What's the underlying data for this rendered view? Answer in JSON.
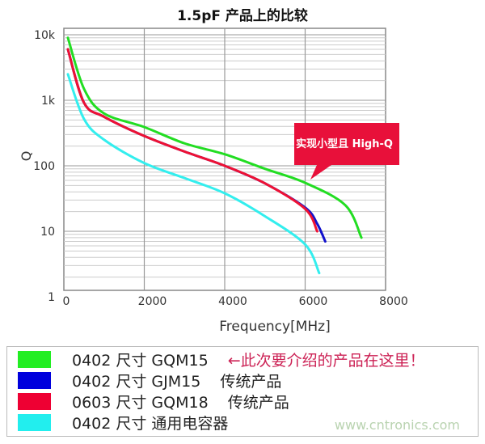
{
  "chart_data": {
    "type": "line",
    "title": "1.5pF 产品上的比较",
    "xlabel": "Frequency[MHz]",
    "ylabel": "Q",
    "xlim": [
      0,
      8000
    ],
    "ylim": [
      1,
      10000
    ],
    "yscale": "log",
    "xticks": [
      "0",
      "2000",
      "4000",
      "6000",
      "8000"
    ],
    "yticks": [
      "1",
      "10",
      "100",
      "1k",
      "10k"
    ],
    "grid": true,
    "callout": "实现小型且 High-Q",
    "series": [
      {
        "name": "0402 尺寸 GQM15",
        "color": "#22dd22",
        "x": [
          100,
          500,
          1000,
          2000,
          3000,
          4000,
          5000,
          6000,
          7000,
          7400
        ],
        "y": [
          9000,
          1500,
          630,
          390,
          220,
          150,
          90,
          55,
          25,
          8
        ]
      },
      {
        "name": "0402 尺寸 GJM15",
        "color": "#1111cc",
        "x": [
          100,
          500,
          1000,
          2000,
          3000,
          4000,
          5000,
          6000,
          6300,
          6500
        ],
        "y": [
          6000,
          920,
          560,
          285,
          165,
          100,
          54,
          23,
          13,
          7
        ]
      },
      {
        "name": "0603 尺寸 GQM18",
        "color": "#ee1133",
        "x": [
          100,
          500,
          1000,
          2000,
          3000,
          4000,
          5000,
          6000,
          6300
        ],
        "y": [
          6000,
          920,
          560,
          285,
          165,
          100,
          54,
          22,
          10
        ]
      },
      {
        "name": "0402 尺寸 通用电容器",
        "color": "#33eeee",
        "x": [
          100,
          500,
          1000,
          2000,
          3000,
          4000,
          5000,
          6000,
          6350
        ],
        "y": [
          2500,
          520,
          250,
          110,
          65,
          38,
          17,
          6.3,
          2.3
        ]
      }
    ]
  },
  "legend": {
    "items": [
      {
        "label": "0402 尺寸 GQM15",
        "note": "←此次要介绍的产品在这里！",
        "note_color": "#cc2255",
        "color": "#22ee22"
      },
      {
        "label": "0402 尺寸 GJM15",
        "note": "传统产品",
        "color": "#0000dd"
      },
      {
        "label": "0603 尺寸 GQM18",
        "note": "传统产品",
        "color": "#ee0033"
      },
      {
        "label": "0402 尺寸 通用电容器",
        "note": "",
        "color": "#22eeee"
      }
    ]
  },
  "watermark": "www.cntronics.com"
}
